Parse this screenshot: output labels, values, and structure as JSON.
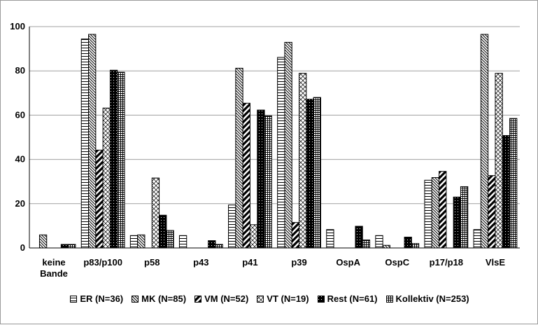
{
  "chart_data": {
    "type": "bar",
    "categories": [
      "keine Bande",
      "p83/p100",
      "p58",
      "p43",
      "p41",
      "p39",
      "OspA",
      "OspC",
      "p17/p18",
      "VlsE"
    ],
    "category_lines": [
      [
        "keine",
        "Bande"
      ],
      [
        "p83/p100"
      ],
      [
        "p58"
      ],
      [
        "p43"
      ],
      [
        "p41"
      ],
      [
        "p39"
      ],
      [
        "OspA"
      ],
      [
        "OspC"
      ],
      [
        "p17/p18"
      ],
      [
        "VlsE"
      ]
    ],
    "series": [
      {
        "name": "ER (N=36)",
        "pattern": "hlines",
        "values": [
          0,
          94.4,
          5.6,
          5.6,
          19.4,
          86.1,
          8.3,
          5.6,
          30.6,
          8.3
        ]
      },
      {
        "name": "MK (N=85)",
        "pattern": "diag-dense",
        "values": [
          5.9,
          96.5,
          5.9,
          0,
          81.2,
          92.9,
          0,
          1.2,
          31.8,
          96.5
        ]
      },
      {
        "name": "VM (N=52)",
        "pattern": "diag-bold",
        "values": [
          0,
          44.2,
          0,
          0,
          65.4,
          11.5,
          0,
          0,
          34.6,
          32.7
        ]
      },
      {
        "name": "VT (N=19)",
        "pattern": "crosshatch",
        "values": [
          0,
          63.2,
          31.6,
          0,
          10.5,
          78.9,
          0,
          0,
          0,
          78.9
        ]
      },
      {
        "name": "Rest (N=61)",
        "pattern": "solid-dots",
        "values": [
          1.6,
          80.3,
          14.8,
          3.3,
          62.3,
          67.2,
          9.8,
          4.9,
          23,
          50.8
        ]
      },
      {
        "name": "Kollektiv (N=253)",
        "pattern": "grid",
        "values": [
          1.6,
          79.4,
          7.9,
          1.6,
          59.7,
          68,
          3.6,
          2,
          27.7,
          58.5
        ]
      }
    ],
    "y_ticks": [
      "0",
      "20",
      "40",
      "60",
      "80",
      "100"
    ],
    "ylim": [
      0,
      100
    ],
    "grid": true,
    "legend": "bottom",
    "title": "",
    "xlabel": "",
    "ylabel": ""
  }
}
